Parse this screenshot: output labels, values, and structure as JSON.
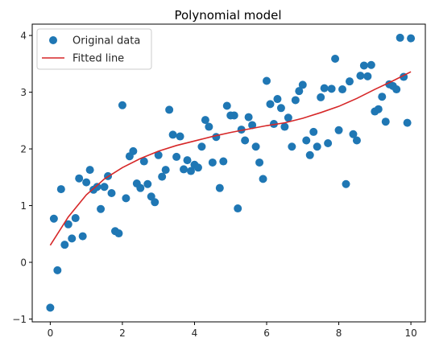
{
  "chart_data": {
    "type": "scatter",
    "title": "Polynomial model",
    "xlabel": "",
    "ylabel": "",
    "xlim": [
      -0.5,
      10.4
    ],
    "ylim": [
      -1.05,
      4.2
    ],
    "xticks": [
      0,
      2,
      4,
      6,
      8,
      10
    ],
    "yticks": [
      -1,
      0,
      1,
      2,
      3,
      4
    ],
    "grid": false,
    "legend_position": "top-left",
    "colors": {
      "points": "#1f77b4",
      "line": "#d62728",
      "axes": "#000000"
    },
    "series": [
      {
        "name": "Original data",
        "kind": "scatter",
        "x": [
          0.0,
          0.1,
          0.2,
          0.3,
          0.4,
          0.5,
          0.6,
          0.7,
          0.8,
          0.9,
          1.0,
          1.1,
          1.2,
          1.3,
          1.4,
          1.5,
          1.6,
          1.7,
          1.8,
          1.9,
          2.0,
          2.1,
          2.2,
          2.3,
          2.4,
          2.5,
          2.6,
          2.7,
          2.8,
          2.9,
          3.0,
          3.1,
          3.2,
          3.3,
          3.4,
          3.5,
          3.6,
          3.7,
          3.8,
          3.9,
          4.0,
          4.1,
          4.2,
          4.3,
          4.4,
          4.5,
          4.6,
          4.7,
          4.8,
          4.9,
          5.0,
          5.1,
          5.2,
          5.3,
          5.4,
          5.5,
          5.6,
          5.7,
          5.8,
          5.9,
          6.0,
          6.1,
          6.2,
          6.3,
          6.4,
          6.5,
          6.6,
          6.7,
          6.8,
          6.9,
          7.0,
          7.1,
          7.2,
          7.3,
          7.4,
          7.5,
          7.6,
          7.7,
          7.8,
          7.9,
          8.0,
          8.1,
          8.2,
          8.3,
          8.4,
          8.5,
          8.6,
          8.7,
          8.8,
          8.9,
          9.0,
          9.1,
          9.2,
          9.3,
          9.4,
          9.5,
          9.6,
          9.7,
          9.8,
          9.9,
          10.0
        ],
        "y": [
          -0.8,
          0.77,
          -0.14,
          1.29,
          0.31,
          0.67,
          0.42,
          0.78,
          1.48,
          0.46,
          1.41,
          1.63,
          1.28,
          1.33,
          0.94,
          1.33,
          1.52,
          1.22,
          0.55,
          0.51,
          2.77,
          1.13,
          1.87,
          1.96,
          1.39,
          1.31,
          1.78,
          1.38,
          1.16,
          1.06,
          1.89,
          1.51,
          1.63,
          2.69,
          2.25,
          1.86,
          2.22,
          1.64,
          1.8,
          1.61,
          1.72,
          1.67,
          2.04,
          2.51,
          2.39,
          1.76,
          2.21,
          1.31,
          1.78,
          2.76,
          2.59,
          2.59,
          0.95,
          2.34,
          2.15,
          2.56,
          2.42,
          2.04,
          1.76,
          1.47,
          3.2,
          2.79,
          2.44,
          2.88,
          2.72,
          2.39,
          2.55,
          2.04,
          2.86,
          3.02,
          3.13,
          2.15,
          1.89,
          2.3,
          2.04,
          2.91,
          3.07,
          2.1,
          3.06,
          3.59,
          2.33,
          3.05,
          1.38,
          3.19,
          2.26,
          2.15,
          3.29,
          3.47,
          3.28,
          3.48,
          2.66,
          2.7,
          2.92,
          2.48,
          3.14,
          3.11,
          3.05,
          3.96,
          3.27,
          2.46,
          3.95
        ]
      },
      {
        "name": "Fitted line",
        "kind": "line",
        "x": [
          0,
          0.5,
          1,
          1.5,
          2,
          2.5,
          3,
          3.5,
          4,
          4.5,
          5,
          5.5,
          6,
          6.5,
          7,
          7.5,
          8,
          8.5,
          9,
          9.5,
          10
        ],
        "y": [
          0.3,
          0.8,
          1.19,
          1.47,
          1.67,
          1.83,
          1.96,
          2.06,
          2.14,
          2.22,
          2.29,
          2.35,
          2.41,
          2.46,
          2.54,
          2.64,
          2.75,
          2.89,
          3.05,
          3.2,
          3.36
        ]
      }
    ]
  }
}
